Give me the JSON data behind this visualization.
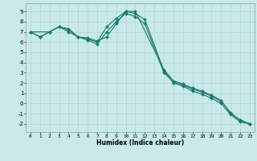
{
  "xlabel": "Humidex (Indice chaleur)",
  "ylabel": "",
  "bg_color": "#c8eaea",
  "grid_color": "#b8d8d8",
  "line_color": "#1a7a6a",
  "xlim": [
    -0.5,
    23.5
  ],
  "ylim": [
    -2.8,
    9.8
  ],
  "xticks": [
    0,
    1,
    2,
    3,
    4,
    5,
    6,
    7,
    8,
    9,
    10,
    11,
    12,
    13,
    14,
    15,
    16,
    17,
    18,
    19,
    20,
    21,
    22,
    23
  ],
  "yticks": [
    -2,
    -1,
    0,
    1,
    2,
    3,
    4,
    5,
    6,
    7,
    8,
    9
  ],
  "series": [
    {
      "x": [
        0,
        1,
        2,
        3,
        4,
        5,
        6,
        7,
        8,
        9,
        10,
        11,
        12,
        14,
        15,
        16,
        17,
        18,
        19,
        20,
        21,
        22,
        23
      ],
      "y": [
        7.0,
        6.5,
        7.0,
        7.5,
        7.2,
        6.5,
        6.3,
        6.0,
        7.5,
        8.3,
        9.0,
        8.8,
        8.2,
        3.2,
        2.0,
        1.7,
        1.2,
        0.9,
        0.5,
        0.0,
        -1.1,
        -1.8,
        -2.0
      ]
    },
    {
      "x": [
        0,
        1,
        2,
        3,
        4,
        5,
        6,
        7,
        8,
        9,
        10,
        11,
        12,
        14,
        15,
        16,
        17,
        18,
        19,
        20,
        21,
        22,
        23
      ],
      "y": [
        7.0,
        6.5,
        7.0,
        7.5,
        7.0,
        6.5,
        6.2,
        5.8,
        7.0,
        8.0,
        8.8,
        8.5,
        7.8,
        3.0,
        2.1,
        1.8,
        1.4,
        1.1,
        0.7,
        0.2,
        -0.9,
        -1.7,
        -2.0
      ]
    },
    {
      "x": [
        0,
        2,
        3,
        4,
        5,
        6,
        7,
        8,
        9,
        10,
        11,
        14,
        15,
        16,
        17,
        18,
        19,
        20,
        21,
        22,
        23
      ],
      "y": [
        7.0,
        7.0,
        7.5,
        7.3,
        6.5,
        6.4,
        6.1,
        6.5,
        7.8,
        9.0,
        9.0,
        3.3,
        2.2,
        1.9,
        1.5,
        1.2,
        0.8,
        0.3,
        -1.0,
        -1.6,
        -2.0
      ]
    }
  ]
}
